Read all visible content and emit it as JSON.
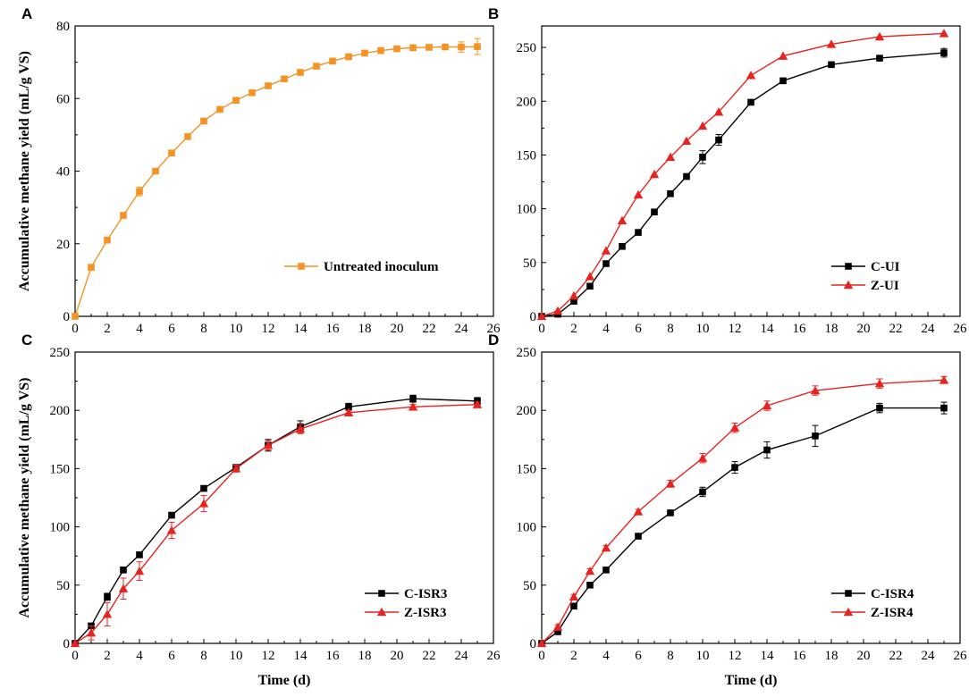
{
  "figure": {
    "ylabel": "Accumulative methane yield (mL/g VS)",
    "xlabel": "Time (d)"
  },
  "chart_data": [
    {
      "panel": "A",
      "type": "line",
      "xlabel": "",
      "ylabel": "Accumulative methane yield (mL/g VS)",
      "xlim": [
        0,
        26
      ],
      "ylim": [
        0,
        80
      ],
      "xticks": [
        "0",
        "2",
        "4",
        "6",
        "8",
        "10",
        "12",
        "14",
        "16",
        "18",
        "20",
        "22",
        "24",
        "26"
      ],
      "yticks": [
        "0",
        "20",
        "40",
        "60",
        "80"
      ],
      "legend_position": "center-right",
      "series": [
        {
          "name": "Untreated inoculum",
          "color": "#f39325",
          "marker": "square",
          "x": [
            0,
            1,
            2,
            3,
            4,
            5,
            6,
            7,
            8,
            9,
            10,
            11,
            12,
            13,
            14,
            15,
            16,
            17,
            18,
            19,
            20,
            21,
            22,
            23,
            24,
            25
          ],
          "y": [
            0,
            13.5,
            21,
            27.8,
            34.4,
            40,
            45,
            49.5,
            53.8,
            57,
            59.5,
            61.6,
            63.5,
            65.4,
            67.2,
            68.9,
            70.3,
            71.5,
            72.5,
            73.2,
            73.7,
            74,
            74.1,
            74.2,
            74.2,
            74.3
          ],
          "err": [
            0,
            0.6,
            0.5,
            0.6,
            1.2,
            0.5,
            0.5,
            0.5,
            0.5,
            0.5,
            0.5,
            0.5,
            0.5,
            0.5,
            0.5,
            0.5,
            0.5,
            0.5,
            0.5,
            0.5,
            0.5,
            0.5,
            0.5,
            0.6,
            1.4,
            2.2
          ]
        }
      ]
    },
    {
      "panel": "B",
      "type": "line",
      "xlabel": "",
      "ylabel": "",
      "xlim": [
        0,
        26
      ],
      "ylim": [
        0,
        270
      ],
      "xticks": [
        "0",
        "2",
        "4",
        "6",
        "8",
        "10",
        "12",
        "14",
        "16",
        "18",
        "20",
        "22",
        "24",
        "26"
      ],
      "yticks": [
        "0",
        "50",
        "100",
        "150",
        "200",
        "250"
      ],
      "legend_position": "bottom-right",
      "series": [
        {
          "name": "C-UI",
          "color": "#000000",
          "marker": "square",
          "x": [
            0,
            1,
            2,
            3,
            4,
            5,
            6,
            7,
            8,
            9,
            10,
            11,
            13,
            15,
            18,
            21,
            25
          ],
          "y": [
            0,
            2,
            14,
            28,
            49,
            65,
            78,
            97,
            114,
            130,
            148,
            164,
            199,
            219,
            234,
            240,
            245
          ],
          "err": [
            0,
            0,
            0,
            0,
            0,
            0,
            0,
            0,
            0,
            0,
            6,
            5,
            0,
            0,
            0,
            0,
            4
          ]
        },
        {
          "name": "Z-UI",
          "color": "#e8231f",
          "marker": "triangle",
          "x": [
            0,
            1,
            2,
            3,
            4,
            5,
            6,
            7,
            8,
            9,
            10,
            11,
            13,
            15,
            18,
            21,
            25
          ],
          "y": [
            0,
            5,
            19,
            37,
            61,
            89,
            113,
            132,
            148,
            163,
            177,
            190,
            224,
            242,
            253,
            260,
            263
          ],
          "err": [
            0,
            0,
            0,
            0,
            0,
            0,
            0,
            0,
            0,
            0,
            0,
            0,
            0,
            0,
            0,
            0,
            0
          ]
        }
      ]
    },
    {
      "panel": "C",
      "type": "line",
      "xlabel": "Time (d)",
      "ylabel": "Accumulative methane yield (mL/g VS)",
      "xlim": [
        0,
        26
      ],
      "ylim": [
        0,
        250
      ],
      "xticks": [
        "0",
        "2",
        "4",
        "6",
        "8",
        "10",
        "12",
        "14",
        "16",
        "18",
        "20",
        "22",
        "24",
        "26"
      ],
      "yticks": [
        "0",
        "50",
        "100",
        "150",
        "200",
        "250"
      ],
      "legend_position": "bottom-right",
      "series": [
        {
          "name": "C-ISR3",
          "color": "#000000",
          "marker": "square",
          "x": [
            0,
            1,
            2,
            3,
            4,
            6,
            8,
            10,
            12,
            14,
            17,
            21,
            25
          ],
          "y": [
            0,
            15,
            40,
            63,
            76,
            110,
            133,
            151,
            170,
            186,
            203,
            210,
            208
          ],
          "err": [
            0,
            2,
            3,
            2,
            2,
            2,
            2,
            2,
            5,
            5,
            3,
            3,
            3
          ]
        },
        {
          "name": "Z-ISR3",
          "color": "#e8231f",
          "marker": "triangle",
          "x": [
            0,
            1,
            2,
            3,
            4,
            6,
            8,
            10,
            12,
            14,
            17,
            21,
            25
          ],
          "y": [
            0,
            9,
            25,
            47,
            62,
            97,
            120,
            150,
            170,
            184,
            198,
            203,
            205
          ],
          "err": [
            0,
            6,
            10,
            9,
            8,
            7,
            7,
            3,
            4,
            4,
            2,
            2,
            2
          ]
        }
      ]
    },
    {
      "panel": "D",
      "type": "line",
      "xlabel": "Time (d)",
      "ylabel": "",
      "xlim": [
        0,
        26
      ],
      "ylim": [
        0,
        250
      ],
      "xticks": [
        "0",
        "2",
        "4",
        "6",
        "8",
        "10",
        "12",
        "14",
        "16",
        "18",
        "20",
        "22",
        "24",
        "26"
      ],
      "yticks": [
        "0",
        "50",
        "100",
        "150",
        "200",
        "250"
      ],
      "legend_position": "bottom-right",
      "series": [
        {
          "name": "C-ISR4",
          "color": "#000000",
          "marker": "square",
          "x": [
            0,
            1,
            2,
            3,
            4,
            6,
            8,
            10,
            12,
            14,
            17,
            21,
            25
          ],
          "y": [
            0,
            10,
            32,
            50,
            63,
            92,
            112,
            130,
            151,
            166,
            178,
            202,
            202
          ],
          "err": [
            0,
            1,
            2,
            2,
            2,
            2,
            2,
            4,
            5,
            7,
            9,
            4,
            5
          ]
        },
        {
          "name": "Z-ISR4",
          "color": "#e8231f",
          "marker": "triangle",
          "x": [
            0,
            1,
            2,
            3,
            4,
            6,
            8,
            10,
            12,
            14,
            17,
            21,
            25
          ],
          "y": [
            0,
            14,
            40,
            62,
            82,
            113,
            137,
            159,
            185,
            204,
            217,
            223,
            226
          ],
          "err": [
            0,
            2,
            2,
            2,
            2,
            2,
            3,
            4,
            4,
            4,
            4,
            4,
            3
          ]
        }
      ]
    }
  ]
}
